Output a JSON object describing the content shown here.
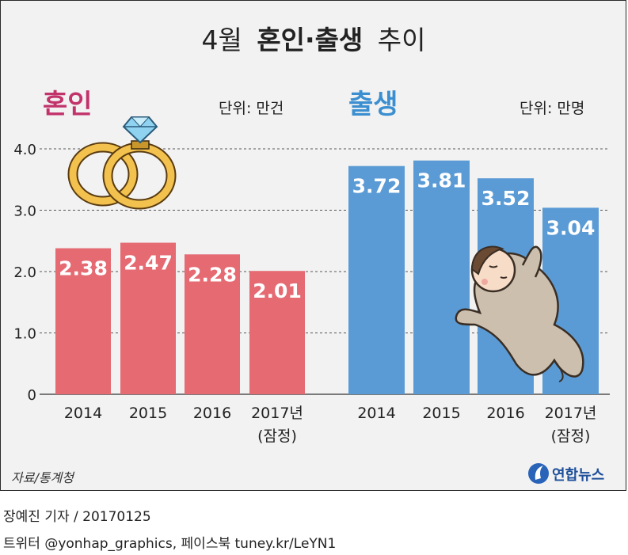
{
  "title": {
    "month": "4월",
    "bold": "혼인·출생",
    "rest": "추이"
  },
  "source": "자료/통계청",
  "agency": "연합뉴스",
  "credits": {
    "line1": "장예진 기자 / 20170125",
    "line2": "트위터 @yonhap_graphics, 페이스북 tuney.kr/LeYN1"
  },
  "colors": {
    "marriage": "#e56a72",
    "marriage_title": "#c2336b",
    "birth": "#5b9bd5",
    "birth_title": "#3b8fd0"
  },
  "chart_data": [
    {
      "type": "bar",
      "title": "혼인",
      "unit_label": "단위: 만건",
      "categories": [
        "2014",
        "2015",
        "2016",
        "2017년\n(잠정)"
      ],
      "values": [
        2.38,
        2.47,
        2.28,
        2.01
      ],
      "value_labels": [
        "2.38",
        "2.47",
        "2.28",
        "2.01"
      ],
      "ylim": [
        0,
        4.0
      ],
      "yticks": [
        "4.0",
        "3.0",
        "2.0",
        "1.0",
        "0"
      ],
      "ytick_values": [
        4,
        3,
        2,
        1,
        0
      ],
      "grid": true
    },
    {
      "type": "bar",
      "title": "출생",
      "unit_label": "단위: 만명",
      "categories": [
        "2014",
        "2015",
        "2016",
        "2017년\n(잠정)"
      ],
      "values": [
        3.72,
        3.81,
        3.52,
        3.04
      ],
      "value_labels": [
        "3.72",
        "3.81",
        "3.52",
        "3.04"
      ],
      "ylim": [
        0,
        4.0
      ],
      "grid": true
    }
  ]
}
